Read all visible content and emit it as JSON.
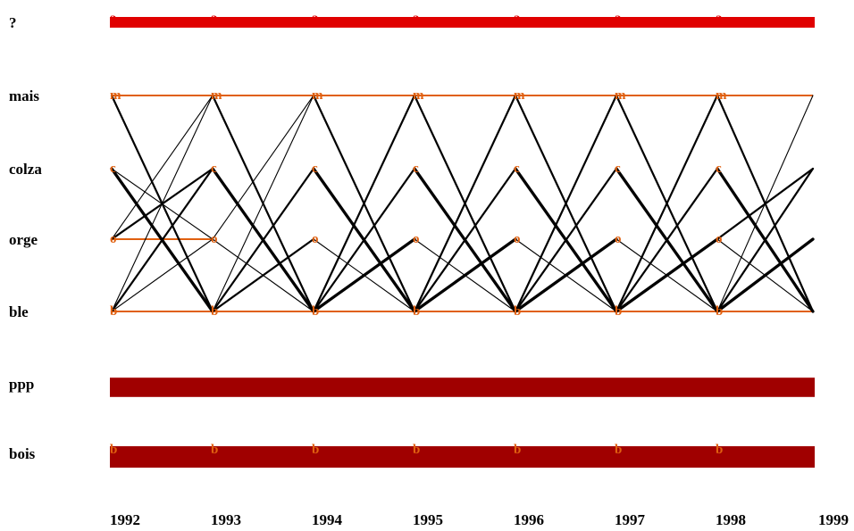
{
  "rows": [
    {
      "key": "unknown",
      "label": "?",
      "node": "?",
      "kind": "bar",
      "bar_weight": 0.5,
      "color": "#e00000"
    },
    {
      "key": "mais",
      "label": "mais",
      "node": "m",
      "kind": "line",
      "color": "#e06010"
    },
    {
      "key": "colza",
      "label": "colza",
      "node": "c",
      "kind": "none",
      "color": "#e06010"
    },
    {
      "key": "orge",
      "label": "orge",
      "node": "o",
      "kind": "none",
      "color": "#e06010"
    },
    {
      "key": "ble",
      "label": "ble",
      "node": "b",
      "kind": "line",
      "color": "#e06010"
    },
    {
      "key": "ppp",
      "label": "ppp",
      "node": "",
      "kind": "bar",
      "bar_weight": 0.9,
      "color": "#a00000"
    },
    {
      "key": "bois",
      "label": "bois",
      "node": "b",
      "kind": "bar",
      "bar_weight": 1,
      "color": "#a00000"
    }
  ],
  "years": [
    "1992",
    "1993",
    "1994",
    "1995",
    "1996",
    "1997",
    "1998",
    "1999"
  ],
  "colors": {
    "flow": "#000000",
    "node_letter": "#e06010",
    "node_letter_unknown": "#e00000",
    "bar_dark": "#a00000",
    "bar_bright": "#e00000"
  },
  "same_crop_segments": [
    {
      "row": "mais",
      "from": 0,
      "to": 7
    },
    {
      "row": "ble",
      "from": 0,
      "to": 7
    },
    {
      "row": "orge",
      "from": 0,
      "to": 1
    }
  ],
  "flows": [
    {
      "from_year": 0,
      "from": "mais",
      "to": "ble",
      "weight": 2
    },
    {
      "from_year": 0,
      "from": "colza",
      "to": "ble",
      "weight": 3
    },
    {
      "from_year": 0,
      "from": "colza",
      "to": "orge",
      "weight": 1
    },
    {
      "from_year": 0,
      "from": "orge",
      "to": "colza",
      "weight": 2
    },
    {
      "from_year": 0,
      "from": "orge",
      "to": "mais",
      "weight": 1
    },
    {
      "from_year": 0,
      "from": "ble",
      "to": "mais",
      "weight": 1
    },
    {
      "from_year": 0,
      "from": "ble",
      "to": "colza",
      "weight": 2
    },
    {
      "from_year": 0,
      "from": "ble",
      "to": "orge",
      "weight": 1
    },
    {
      "from_year": 1,
      "from": "mais",
      "to": "ble",
      "weight": 2
    },
    {
      "from_year": 1,
      "from": "colza",
      "to": "ble",
      "weight": 3
    },
    {
      "from_year": 1,
      "from": "orge",
      "to": "mais",
      "weight": 1
    },
    {
      "from_year": 1,
      "from": "orge",
      "to": "ble",
      "weight": 1
    },
    {
      "from_year": 1,
      "from": "ble",
      "to": "mais",
      "weight": 1
    },
    {
      "from_year": 1,
      "from": "ble",
      "to": "colza",
      "weight": 2
    },
    {
      "from_year": 1,
      "from": "ble",
      "to": "orge",
      "weight": 2
    },
    {
      "from_year": 2,
      "from": "mais",
      "to": "ble",
      "weight": 2
    },
    {
      "from_year": 2,
      "from": "colza",
      "to": "ble",
      "weight": 3
    },
    {
      "from_year": 2,
      "from": "orge",
      "to": "ble",
      "weight": 1
    },
    {
      "from_year": 2,
      "from": "ble",
      "to": "mais",
      "weight": 2
    },
    {
      "from_year": 2,
      "from": "ble",
      "to": "colza",
      "weight": 2
    },
    {
      "from_year": 2,
      "from": "ble",
      "to": "orge",
      "weight": 3
    },
    {
      "from_year": 3,
      "from": "mais",
      "to": "ble",
      "weight": 2
    },
    {
      "from_year": 3,
      "from": "colza",
      "to": "ble",
      "weight": 3
    },
    {
      "from_year": 3,
      "from": "orge",
      "to": "ble",
      "weight": 1
    },
    {
      "from_year": 3,
      "from": "ble",
      "to": "mais",
      "weight": 2
    },
    {
      "from_year": 3,
      "from": "ble",
      "to": "colza",
      "weight": 2
    },
    {
      "from_year": 3,
      "from": "ble",
      "to": "orge",
      "weight": 3
    },
    {
      "from_year": 4,
      "from": "mais",
      "to": "ble",
      "weight": 2
    },
    {
      "from_year": 4,
      "from": "colza",
      "to": "ble",
      "weight": 3
    },
    {
      "from_year": 4,
      "from": "orge",
      "to": "ble",
      "weight": 1
    },
    {
      "from_year": 4,
      "from": "ble",
      "to": "mais",
      "weight": 2
    },
    {
      "from_year": 4,
      "from": "ble",
      "to": "colza",
      "weight": 2
    },
    {
      "from_year": 4,
      "from": "ble",
      "to": "orge",
      "weight": 3
    },
    {
      "from_year": 5,
      "from": "mais",
      "to": "ble",
      "weight": 2
    },
    {
      "from_year": 5,
      "from": "colza",
      "to": "ble",
      "weight": 3
    },
    {
      "from_year": 5,
      "from": "orge",
      "to": "ble",
      "weight": 1
    },
    {
      "from_year": 5,
      "from": "ble",
      "to": "mais",
      "weight": 2
    },
    {
      "from_year": 5,
      "from": "ble",
      "to": "colza",
      "weight": 2
    },
    {
      "from_year": 5,
      "from": "ble",
      "to": "orge",
      "weight": 3
    },
    {
      "from_year": 6,
      "from": "mais",
      "to": "ble",
      "weight": 2
    },
    {
      "from_year": 6,
      "from": "colza",
      "to": "ble",
      "weight": 3
    },
    {
      "from_year": 6,
      "from": "orge",
      "to": "ble",
      "weight": 1
    },
    {
      "from_year": 6,
      "from": "orge",
      "to": "colza",
      "weight": 2
    },
    {
      "from_year": 6,
      "from": "ble",
      "to": "mais",
      "weight": 1
    },
    {
      "from_year": 6,
      "from": "ble",
      "to": "colza",
      "weight": 2
    },
    {
      "from_year": 6,
      "from": "ble",
      "to": "orge",
      "weight": 3
    }
  ]
}
